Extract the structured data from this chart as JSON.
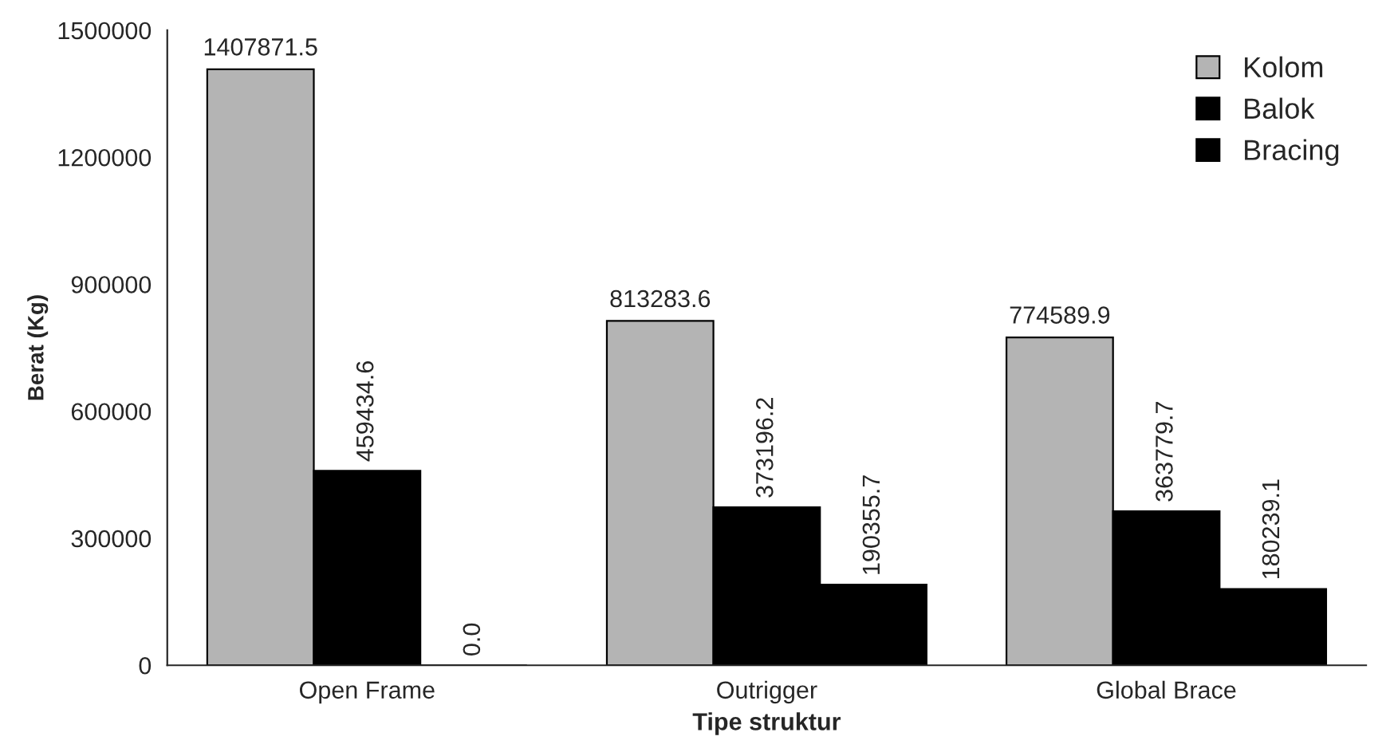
{
  "chart_data": {
    "type": "bar",
    "xlabel": "Tipe struktur",
    "ylabel": "Berat (Kg)",
    "categories": [
      "Open Frame",
      "Outrigger",
      "Global Brace"
    ],
    "series": [
      {
        "name": "Kolom",
        "color": "#b4b4b4",
        "values": [
          1407871.5,
          813283.6,
          774589.9
        ],
        "value_labels": [
          "1407871.5",
          "813283.6",
          "774589.9"
        ]
      },
      {
        "name": "Balok",
        "color": "#000000",
        "values": [
          459434.6,
          373196.2,
          363779.7
        ],
        "value_labels": [
          "459434.6",
          "373196.2",
          "363779.7"
        ]
      },
      {
        "name": "Bracing",
        "color": "#000000",
        "values": [
          0.0,
          190355.7,
          180239.1
        ],
        "value_labels": [
          "0.0",
          "190355.7",
          "180239.1"
        ]
      }
    ],
    "ylim": [
      0,
      1500000
    ],
    "yticks": [
      0,
      300000,
      600000,
      900000,
      1200000,
      1500000
    ],
    "grid": false,
    "legend": "top right"
  }
}
